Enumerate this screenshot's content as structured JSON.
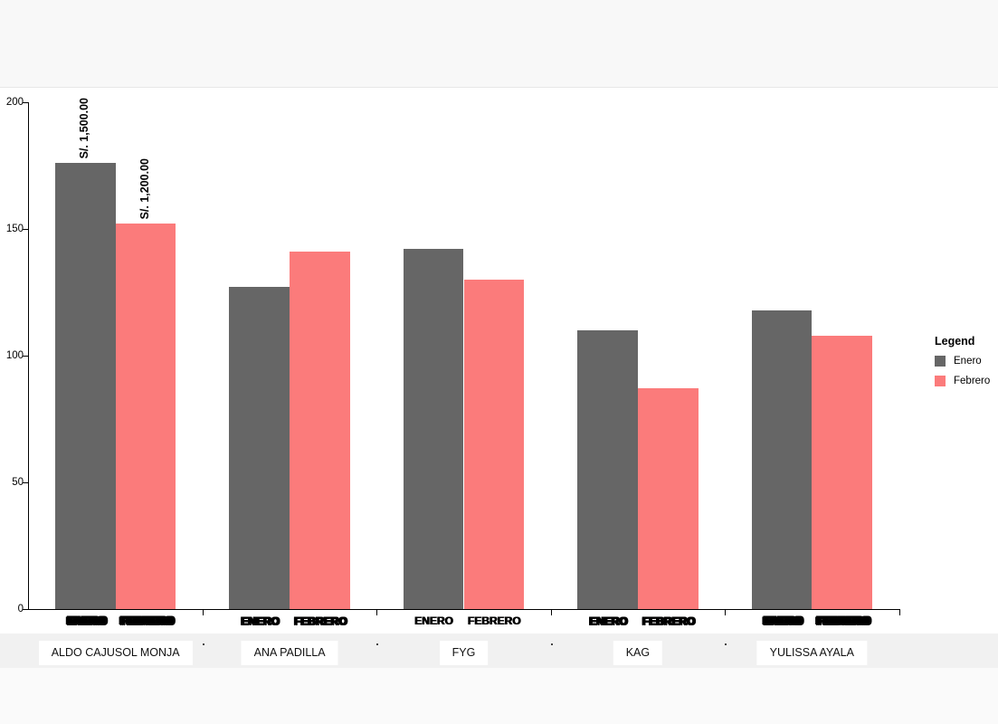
{
  "chart_data": {
    "type": "bar",
    "title": "",
    "categories": [
      "ALDO CAJUSOL MONJA",
      "ANA PADILLA",
      "FYG",
      "KAG",
      "YULISSA AYALA"
    ],
    "series": [
      {
        "name": "Enero",
        "color": "#666666",
        "values": [
          176,
          127,
          142,
          110,
          118
        ],
        "annotations": [
          "S/. 1,500.00",
          null,
          null,
          null,
          null
        ]
      },
      {
        "name": "Febrero",
        "color": "#fb7b7b",
        "values": [
          152,
          141,
          130,
          87,
          108
        ],
        "annotations": [
          "S/. 1,200.00",
          null,
          null,
          null,
          null
        ]
      }
    ],
    "bar_tick_labels": [
      "ENERO",
      "FEBRERO"
    ],
    "y_ticks": [
      0,
      50,
      100,
      150,
      200
    ],
    "ylim": [
      0,
      200
    ],
    "grid": false,
    "legend": {
      "title": "Legend",
      "position": "right",
      "entries": [
        {
          "label": "Enero",
          "color": "#666666"
        },
        {
          "label": "Febrero",
          "color": "#fb7b7b"
        }
      ]
    }
  }
}
